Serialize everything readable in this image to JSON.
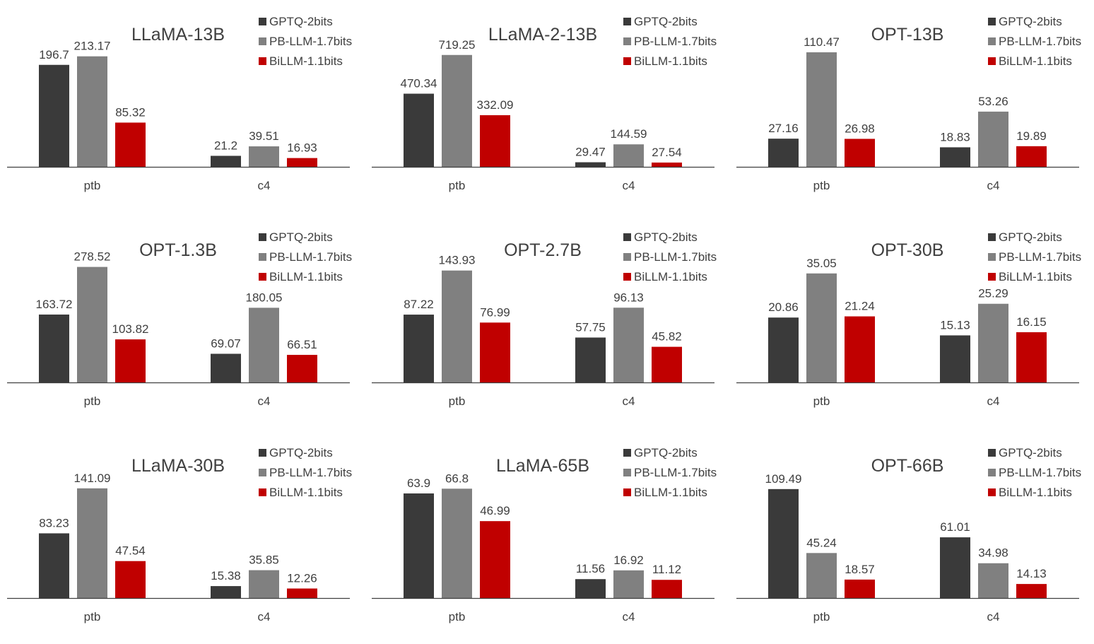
{
  "legend": [
    "GPTQ-2bits",
    "PB-LLM-1.7bits",
    "BiLLM-1.1bits"
  ],
  "colors": [
    "#3a3a3a",
    "#808080",
    "#c00000"
  ],
  "chart_data": [
    {
      "type": "bar",
      "title": "LLaMA-13B",
      "categories": [
        "ptb",
        "c4"
      ],
      "series": [
        {
          "name": "GPTQ-2bits",
          "values": [
            196.7,
            21.2
          ]
        },
        {
          "name": "PB-LLM-1.7bits",
          "values": [
            213.17,
            39.51
          ]
        },
        {
          "name": "BiLLM-1.1bits",
          "values": [
            85.32,
            16.93
          ]
        }
      ],
      "ylim": [
        0,
        240
      ]
    },
    {
      "type": "bar",
      "title": "LLaMA-2-13B",
      "categories": [
        "ptb",
        "c4"
      ],
      "series": [
        {
          "name": "GPTQ-2bits",
          "values": [
            470.34,
            29.47
          ]
        },
        {
          "name": "PB-LLM-1.7bits",
          "values": [
            719.25,
            144.59
          ]
        },
        {
          "name": "BiLLM-1.1bits",
          "values": [
            332.09,
            27.54
          ]
        }
      ],
      "ylim": [
        0,
        800
      ]
    },
    {
      "type": "bar",
      "title": "OPT-13B",
      "categories": [
        "ptb",
        "c4"
      ],
      "series": [
        {
          "name": "GPTQ-2bits",
          "values": [
            27.16,
            18.83
          ]
        },
        {
          "name": "PB-LLM-1.7bits",
          "values": [
            110.47,
            53.26
          ]
        },
        {
          "name": "BiLLM-1.1bits",
          "values": [
            26.98,
            19.89
          ]
        }
      ],
      "ylim": [
        0,
        120
      ]
    },
    {
      "type": "bar",
      "title": "OPT-1.3B",
      "categories": [
        "ptb",
        "c4"
      ],
      "series": [
        {
          "name": "GPTQ-2bits",
          "values": [
            163.72,
            69.07
          ]
        },
        {
          "name": "PB-LLM-1.7bits",
          "values": [
            278.52,
            180.05
          ]
        },
        {
          "name": "BiLLM-1.1bits",
          "values": [
            103.82,
            66.51
          ]
        }
      ],
      "ylim": [
        0,
        300
      ]
    },
    {
      "type": "bar",
      "title": "OPT-2.7B",
      "categories": [
        "ptb",
        "c4"
      ],
      "series": [
        {
          "name": "GPTQ-2bits",
          "values": [
            87.22,
            57.75
          ]
        },
        {
          "name": "PB-LLM-1.7bits",
          "values": [
            143.93,
            96.13
          ]
        },
        {
          "name": "BiLLM-1.1bits",
          "values": [
            76.99,
            45.82
          ]
        }
      ],
      "ylim": [
        0,
        160
      ]
    },
    {
      "type": "bar",
      "title": "OPT-30B",
      "categories": [
        "ptb",
        "c4"
      ],
      "series": [
        {
          "name": "GPTQ-2bits",
          "values": [
            20.86,
            15.13
          ]
        },
        {
          "name": "PB-LLM-1.7bits",
          "values": [
            35.05,
            25.29
          ]
        },
        {
          "name": "BiLLM-1.1bits",
          "values": [
            21.24,
            16.15
          ]
        }
      ],
      "ylim": [
        0,
        40
      ]
    },
    {
      "type": "bar",
      "title": "LLaMA-30B",
      "categories": [
        "ptb",
        "c4"
      ],
      "series": [
        {
          "name": "GPTQ-2bits",
          "values": [
            83.23,
            15.38
          ]
        },
        {
          "name": "PB-LLM-1.7bits",
          "values": [
            141.09,
            35.85
          ]
        },
        {
          "name": "BiLLM-1.1bits",
          "values": [
            47.54,
            12.26
          ]
        }
      ],
      "ylim": [
        0,
        160
      ]
    },
    {
      "type": "bar",
      "title": "LLaMA-65B",
      "categories": [
        "ptb",
        "c4"
      ],
      "series": [
        {
          "name": "GPTQ-2bits",
          "values": [
            63.9,
            11.56
          ]
        },
        {
          "name": "PB-LLM-1.7bits",
          "values": [
            66.8,
            16.92
          ]
        },
        {
          "name": "BiLLM-1.1bits",
          "values": [
            46.99,
            11.12
          ]
        }
      ],
      "ylim": [
        0,
        76
      ]
    },
    {
      "type": "bar",
      "title": "OPT-66B",
      "categories": [
        "ptb",
        "c4"
      ],
      "series": [
        {
          "name": "GPTQ-2bits",
          "values": [
            109.49,
            61.01
          ]
        },
        {
          "name": "PB-LLM-1.7bits",
          "values": [
            45.24,
            34.98
          ]
        },
        {
          "name": "BiLLM-1.1bits",
          "values": [
            18.57,
            14.13
          ]
        }
      ],
      "ylim": [
        0,
        125
      ]
    }
  ]
}
